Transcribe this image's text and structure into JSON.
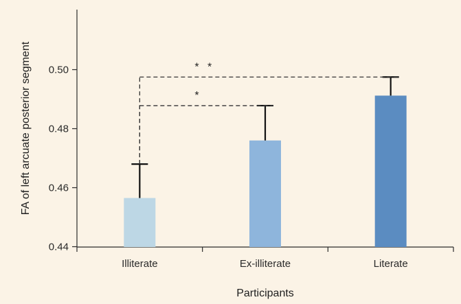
{
  "chart_data": {
    "type": "bar",
    "xlabel": "Participants",
    "ylabel": "FA of left arcuate posterior segment",
    "categories": [
      "Illiterate",
      "Ex-illiterate",
      "Literate"
    ],
    "values": [
      0.4565,
      0.476,
      0.4912
    ],
    "error_upper": [
      0.468,
      0.4878,
      0.4975
    ],
    "colors": [
      "#bdd7e5",
      "#8eb5dc",
      "#5b8cc1"
    ],
    "ylim": [
      0.43,
      0.51
    ],
    "yticks": [
      "0.44",
      "0.46",
      "0.48",
      "0.50"
    ],
    "grid": false,
    "significance": [
      {
        "from": "Illiterate",
        "to": "Ex-illiterate",
        "label": "*"
      },
      {
        "from": "Illiterate",
        "to": "Literate",
        "label": "* *"
      }
    ]
  }
}
